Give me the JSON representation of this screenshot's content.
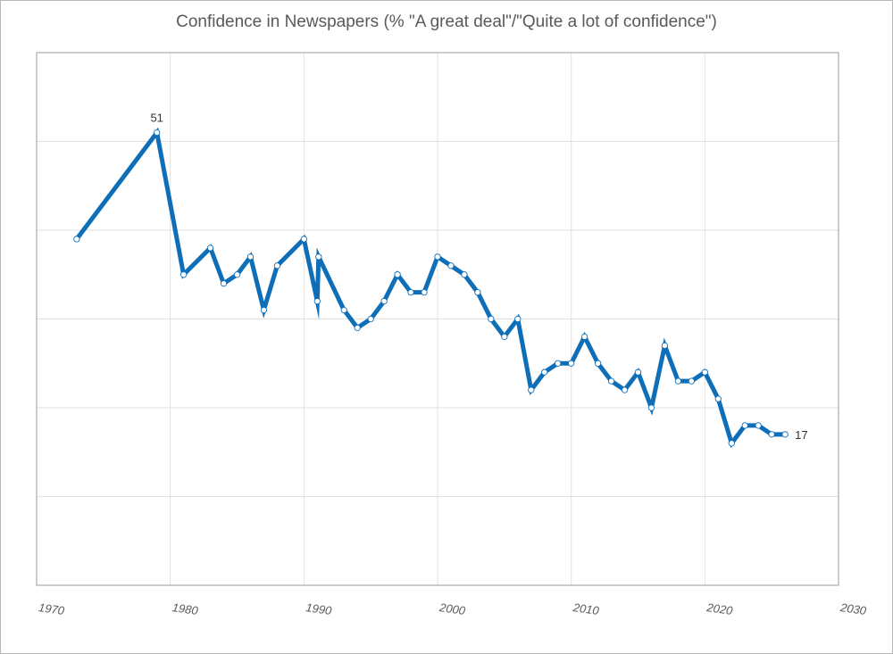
{
  "chart_data": {
    "type": "line",
    "title": "Confidence in Newspapers (% \"A great deal\"/\"Quite a lot of confidence\")",
    "xlabel": "",
    "ylabel": "",
    "xlim": [
      1970,
      2030
    ],
    "ylim": [
      0,
      60
    ],
    "x_ticks": [
      "1970",
      "1980",
      "1990",
      "2000",
      "2010",
      "2020",
      "2030"
    ],
    "grid": true,
    "legend": "none",
    "line_color": "#0E6EB8",
    "series": [
      {
        "x": [
          1973,
          1979,
          1981,
          1983,
          1984,
          1985,
          1986,
          1987,
          1988,
          1990,
          1991,
          1991.1,
          1993,
          1994,
          1995,
          1996,
          1997,
          1998,
          1999,
          2000,
          2001,
          2002,
          2003,
          2004,
          2005,
          2006,
          2007,
          2008,
          2009,
          2010,
          2011,
          2012,
          2013,
          2014,
          2015,
          2016,
          2017,
          2018,
          2019,
          2020,
          2021,
          2022,
          2023,
          2024,
          2025,
          2026
        ],
        "values": [
          39,
          51,
          35,
          38,
          34,
          35,
          37,
          31,
          36,
          39,
          32,
          37,
          31,
          29,
          30,
          32,
          35,
          33,
          33,
          37,
          36,
          35,
          33,
          30,
          28,
          30,
          22,
          24,
          25,
          25,
          28,
          25,
          23,
          22,
          24,
          20,
          27,
          23,
          23,
          24,
          21,
          16,
          18,
          18,
          17,
          17
        ]
      }
    ],
    "annotations": [
      {
        "label": "51",
        "x": 1979,
        "y": 51
      },
      {
        "label": "17",
        "x": 2026,
        "y": 17
      }
    ]
  }
}
